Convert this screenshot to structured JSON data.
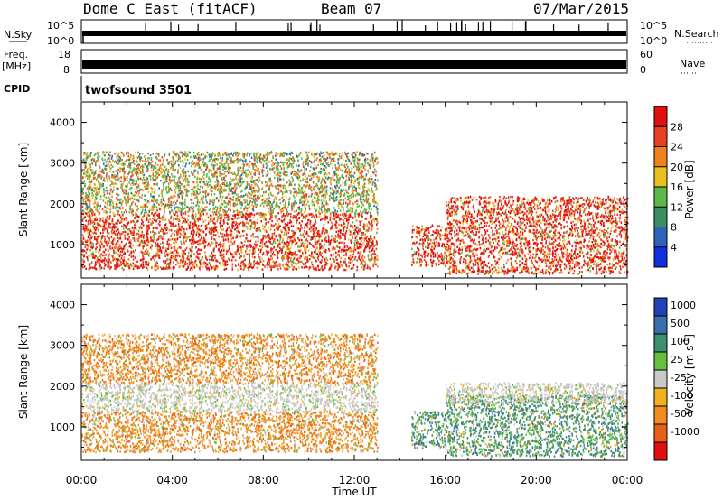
{
  "header": {
    "site": "Dome C East (fitACF)",
    "beam": "Beam 07",
    "date": "07/Mar/2015"
  },
  "noise_panel": {
    "left_label": "N.Sky",
    "right_label": "N.Search",
    "left_ticks": [
      "10^5",
      "10^0"
    ],
    "right_ticks": [
      "10^5",
      "10^0"
    ]
  },
  "freq_panel": {
    "left_label_line1": "Freq.",
    "left_label_line2": "[MHz]",
    "right_label": "Nave",
    "left_ticks": [
      "18",
      "8"
    ],
    "right_ticks": [
      "60",
      "0"
    ]
  },
  "cpid_panel": {
    "label": "CPID",
    "program": "twofsound 3501"
  },
  "axes": {
    "ylabel": "Slant Range [km]",
    "xlabel": "Time UT",
    "x_ticks": [
      "00:00",
      "04:00",
      "08:00",
      "12:00",
      "16:00",
      "20:00",
      "00:00"
    ],
    "y_ticks": [
      "1000",
      "2000",
      "3000",
      "4000"
    ],
    "x_range_hours": [
      0,
      24
    ],
    "y_range_km": [
      180,
      4500
    ]
  },
  "colorbars": {
    "power": {
      "label": "Power [dB]",
      "ticks": [
        "4",
        "8",
        "12",
        "16",
        "20",
        "24",
        "28"
      ],
      "colors": [
        "#1030e0",
        "#2f62b8",
        "#3d8e63",
        "#5cb84a",
        "#e8c020",
        "#f08020",
        "#e84020",
        "#e01010"
      ]
    },
    "velocity": {
      "label": "Velocity [m s",
      "label_sup": "-1",
      "label_end": "]",
      "ticks": [
        "1000",
        "500",
        "100",
        "25",
        "-25",
        "-100",
        "-500",
        "-1000"
      ],
      "colors": [
        "#2040b8",
        "#3a6fae",
        "#3f8e6c",
        "#66c040",
        "#c8c8c8",
        "#f0b020",
        "#f08c20",
        "#e86018",
        "#e01010"
      ]
    }
  },
  "chart_data": [
    {
      "type": "heatmap",
      "title": "",
      "xlabel": "Time UT",
      "ylabel": "Slant Range [km]",
      "colorbar": "Power [dB]",
      "x_range": [
        "00:00",
        "00:00"
      ],
      "ylim": [
        180,
        4500
      ],
      "scatter_regions": [
        {
          "t_start": 0.0,
          "t_end": 13.0,
          "r_min": 400,
          "r_max": 1800,
          "level": "high",
          "note": "dominant red/orange echoes"
        },
        {
          "t_start": 0.0,
          "t_end": 13.0,
          "r_min": 1800,
          "r_max": 3300,
          "level": "medium",
          "note": "green/orange scatter"
        },
        {
          "t_start": 14.5,
          "t_end": 16.0,
          "r_min": 500,
          "r_max": 1500,
          "level": "high"
        },
        {
          "t_start": 16.0,
          "t_end": 24.0,
          "r_min": 300,
          "r_max": 2200,
          "level": "high"
        }
      ]
    },
    {
      "type": "heatmap",
      "title": "",
      "xlabel": "Time UT",
      "ylabel": "Slant Range [km]",
      "colorbar": "Velocity [m s-1]",
      "x_range": [
        "00:00",
        "00:00"
      ],
      "ylim": [
        180,
        4500
      ],
      "scatter_regions": [
        {
          "t_start": 0.0,
          "t_end": 13.0,
          "r_min": 400,
          "r_max": 1400,
          "velocity": "-100 to -500",
          "note": "orange"
        },
        {
          "t_start": 0.0,
          "t_end": 13.0,
          "r_min": 1400,
          "r_max": 2100,
          "velocity": "-25 to 25",
          "note": "grey band"
        },
        {
          "t_start": 0.0,
          "t_end": 13.0,
          "r_min": 2100,
          "r_max": 3300,
          "velocity": "-100 to -500"
        },
        {
          "t_start": 14.5,
          "t_end": 16.0,
          "r_min": 500,
          "r_max": 1400,
          "velocity": "100 to 500"
        },
        {
          "t_start": 16.0,
          "t_end": 24.0,
          "r_min": 300,
          "r_max": 1800,
          "velocity": "100 to 500",
          "note": "green/teal"
        },
        {
          "t_start": 16.0,
          "t_end": 24.0,
          "r_min": 1600,
          "r_max": 2100,
          "velocity": "-25 to 25",
          "note": "grey band"
        }
      ]
    }
  ]
}
